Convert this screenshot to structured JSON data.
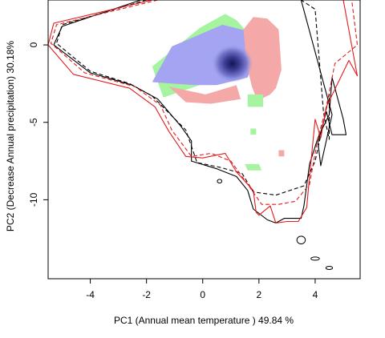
{
  "chart_data": {
    "type": "scatter",
    "title": "",
    "xlabel": "PC1 (Annual mean temperature ) 49.84 %",
    "ylabel": "PC2 (Decrease Annual precipitation) 30.18%",
    "xlim": [
      -5.5,
      5.6
    ],
    "ylim": [
      -15.1,
      2.9
    ],
    "x_ticks": [
      -4,
      -2,
      0,
      2,
      4
    ],
    "y_ticks": [
      0,
      -5,
      -10
    ],
    "grid": false,
    "legend": "none",
    "colors": {
      "green_region": "#a6f3a0",
      "blue_region": "#a4a4f2",
      "pink_region": "#f4a8a8",
      "core_dark": "#141450",
      "contour_black": "#000000",
      "contour_red": "#e41a1c"
    },
    "regions": [
      {
        "fill": "green_region",
        "x": [
          -1.8,
          -0.1,
          0.8,
          1.2,
          1.6,
          1.5,
          0.2,
          -1.4,
          -1.8
        ],
        "y": [
          -1.4,
          1.1,
          2.0,
          1.6,
          0.8,
          -0.9,
          -2.4,
          -3.4,
          -1.4
        ]
      },
      {
        "fill": "blue_region",
        "x": [
          -1.8,
          -1.1,
          0.7,
          1.6,
          1.9,
          1.6,
          0.5,
          -0.3,
          -1.8
        ],
        "y": [
          -2.4,
          -0.1,
          1.3,
          0.9,
          -0.6,
          -2.1,
          -2.6,
          -2.6,
          -2.4
        ]
      },
      {
        "fill": "pink_region",
        "x": [
          1.45,
          1.8,
          2.3,
          2.7,
          2.8,
          2.6,
          2.4,
          1.95,
          1.75,
          1.55,
          1.45
        ],
        "y": [
          1.0,
          1.8,
          1.7,
          1.0,
          -1.6,
          -2.8,
          -3.2,
          -3.6,
          -2.7,
          -1.2,
          1.0
        ]
      },
      {
        "fill": "pink_region",
        "x": [
          -1.2,
          0.1,
          1.2,
          1.35,
          0.3,
          -0.6,
          -1.2
        ],
        "y": [
          -2.7,
          -3.2,
          -2.6,
          -3.5,
          -3.8,
          -3.7,
          -2.7
        ]
      },
      {
        "fill": "green_region",
        "x": [
          1.6,
          2.15,
          2.15,
          1.6
        ],
        "y": [
          -3.2,
          -3.2,
          -4.0,
          -4.0
        ]
      },
      {
        "fill": "green_region",
        "x": [
          1.5,
          2.0,
          2.1,
          1.6
        ],
        "y": [
          -7.7,
          -7.7,
          -8.1,
          -8.1
        ]
      },
      {
        "fill": "pink_region",
        "x": [
          2.7,
          2.9,
          2.9,
          2.7
        ],
        "y": [
          -6.8,
          -6.8,
          -7.2,
          -7.2
        ]
      },
      {
        "fill": "green_region",
        "x": [
          1.7,
          1.9,
          1.9,
          1.7
        ],
        "y": [
          -5.4,
          -5.4,
          -5.8,
          -5.8
        ]
      }
    ],
    "core_center": [
      1.05,
      -1.2
    ],
    "contours": [
      {
        "color": "contour_black",
        "dash": "solid",
        "x": [
          -2.2,
          -5.0,
          -5.3,
          -4.0,
          -2.5,
          -1.6,
          -0.8,
          -0.4,
          -0.4,
          0.5,
          1.2,
          1.6,
          1.8,
          2.3,
          2.6,
          2.9,
          3.5,
          3.6,
          3.8,
          4.1,
          4.5,
          4.6,
          5.0,
          5.1,
          4.6,
          4.4,
          4.1,
          4.2,
          4.6,
          3.5,
          0.5,
          -2.2
        ],
        "y": [
          2.9,
          1.2,
          0.0,
          -1.8,
          -2.6,
          -3.5,
          -5.2,
          -6.2,
          -7.5,
          -8.0,
          -8.5,
          -9.4,
          -10.6,
          -11.3,
          -11.5,
          -11.2,
          -11.2,
          -10.4,
          -7.7,
          -6.0,
          -4.5,
          -2.1,
          -4.8,
          -5.8,
          -5.8,
          -4.3,
          -6.3,
          -7.8,
          -4.5,
          2.9,
          2.9,
          2.9
        ]
      },
      {
        "color": "contour_black",
        "dash": "dashed",
        "x": [
          -2.0,
          -5.0,
          -5.2,
          -4.0,
          -2.6,
          -1.8,
          -0.6,
          -0.2,
          0.6,
          1.4,
          1.8,
          2.6,
          3.6,
          4.0,
          4.3,
          4.5,
          4.5,
          4.3,
          4.0,
          3.5,
          0.5,
          -2.0
        ],
        "y": [
          2.9,
          1.3,
          0.1,
          -1.7,
          -2.5,
          -3.3,
          -5.5,
          -7.6,
          -7.9,
          -8.3,
          -9.5,
          -9.7,
          -9.1,
          -7.5,
          -5.0,
          -3.2,
          -6.1,
          -4.4,
          2.3,
          2.9,
          2.9,
          2.9
        ]
      },
      {
        "color": "contour_red",
        "dash": "solid",
        "x": [
          -1.8,
          -5.3,
          -5.5,
          -4.6,
          -2.6,
          -1.7,
          -1.2,
          -0.6,
          0.0,
          0.8,
          1.2,
          1.8,
          1.9,
          2.0,
          2.4,
          2.6,
          3.0,
          3.4,
          3.7,
          3.8,
          4.0,
          4.2,
          4.4,
          5.2,
          5.5,
          5.0,
          4.2,
          1.5,
          -1.8
        ],
        "y": [
          2.9,
          1.4,
          0.0,
          -1.9,
          -2.8,
          -4.0,
          -5.6,
          -7.2,
          -7.3,
          -7.0,
          -8.2,
          -9.4,
          -10.8,
          -11.0,
          -10.4,
          -11.5,
          -11.4,
          -11.4,
          -10.5,
          -8.5,
          -4.8,
          -6.0,
          -4.0,
          -1.0,
          -2.0,
          2.9,
          2.9,
          2.9,
          2.9
        ]
      },
      {
        "color": "contour_red",
        "dash": "dashed",
        "x": [
          -1.6,
          -5.2,
          -5.4,
          -4.2,
          -2.4,
          -1.5,
          -1.1,
          -0.4,
          0.3,
          1.0,
          1.6,
          2.1,
          2.7,
          3.3,
          3.8,
          4.1,
          4.4,
          4.7,
          5.5,
          5.3,
          4.4,
          1.5,
          -1.6
        ],
        "y": [
          2.9,
          1.3,
          0.1,
          -1.8,
          -2.7,
          -3.9,
          -5.5,
          -7.2,
          -7.0,
          -7.5,
          -9.0,
          -10.3,
          -10.3,
          -10.1,
          -9.0,
          -6.0,
          -4.0,
          -1.2,
          0.0,
          2.9,
          2.9,
          2.9,
          2.9
        ]
      }
    ],
    "small_contours": [
      {
        "color": "contour_black",
        "center": [
          3.5,
          -12.6
        ],
        "r": [
          0.15,
          0.25
        ]
      },
      {
        "color": "contour_black",
        "center": [
          4.0,
          -13.8
        ],
        "r": [
          0.15,
          0.1
        ]
      },
      {
        "color": "contour_black",
        "center": [
          4.5,
          -14.4
        ],
        "r": [
          0.12,
          0.1
        ]
      },
      {
        "color": "contour_black",
        "center": [
          0.6,
          -8.8
        ],
        "r": [
          0.08,
          0.12
        ]
      }
    ]
  }
}
